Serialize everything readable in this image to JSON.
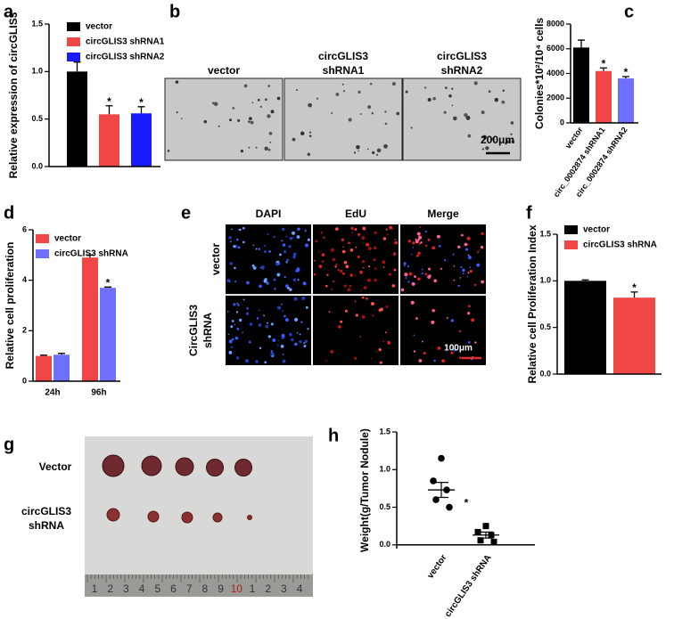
{
  "chart_data": [
    {
      "panel": "a",
      "type": "bar",
      "ylabel": "Relative expression of circGLIS3",
      "series": [
        {
          "name": "vector",
          "color": "#000000",
          "values": [
            1.0
          ],
          "errors": [
            0.1
          ],
          "significance": [
            null
          ]
        },
        {
          "name": "circGLIS3 shRNA1",
          "color": "#f04646",
          "values": [
            0.55
          ],
          "errors": [
            0.09
          ],
          "significance": [
            "*"
          ]
        },
        {
          "name": "circGLIS3 shRNA2",
          "color": "#1a1aff",
          "values": [
            0.56
          ],
          "errors": [
            0.07
          ],
          "significance": [
            "*"
          ]
        }
      ],
      "ylim": [
        0,
        1.5
      ],
      "yticks": [
        {
          "value": 0,
          "label": "0.0"
        },
        {
          "value": 0.5,
          "label": "0.5"
        },
        {
          "value": 1,
          "label": "1.0"
        },
        {
          "value": 1.5,
          "label": "1.5"
        }
      ]
    },
    {
      "panel": "c",
      "type": "bar",
      "ylabel": "Colonies*10²/10⁴ cells",
      "categories": [
        "vector",
        "circ_0002874 shRNA1",
        "circ_0002874 shRNA2"
      ],
      "values": [
        6100,
        4200,
        3600
      ],
      "errors": [
        600,
        250,
        150
      ],
      "significance": [
        null,
        "*",
        "*"
      ],
      "colors": [
        "#000000",
        "#f04646",
        "#6e6eff"
      ],
      "ylim": [
        0,
        8000
      ],
      "yticks": [
        0,
        2000,
        4000,
        6000,
        8000
      ]
    },
    {
      "panel": "d",
      "type": "bar",
      "ylabel": "Relative cell proliferation",
      "categories": [
        "24h",
        "96h"
      ],
      "series": [
        {
          "name": "vector",
          "color": "#f04646",
          "values": [
            1.0,
            4.9
          ],
          "errors": [
            0.03,
            0.1
          ],
          "significance": [
            null,
            null
          ]
        },
        {
          "name": "circGLIS3 shRNA",
          "color": "#7070ff",
          "values": [
            1.05,
            3.7
          ],
          "errors": [
            0.05,
            0.03
          ],
          "significance": [
            null,
            "*"
          ]
        }
      ],
      "ylim": [
        0,
        6
      ],
      "yticks": [
        0,
        2,
        4,
        6
      ]
    },
    {
      "panel": "f",
      "type": "bar",
      "ylabel": "Relative cell Proliferation Index",
      "series": [
        {
          "name": "vector",
          "color": "#000000",
          "values": [
            1.0
          ],
          "errors": [
            0.01
          ],
          "significance": [
            null
          ]
        },
        {
          "name": "circGLIS3 shRNA",
          "color": "#f04646",
          "values": [
            0.82
          ],
          "errors": [
            0.06
          ],
          "significance": [
            "*"
          ]
        }
      ],
      "ylim": [
        0,
        1.5
      ],
      "yticks": [
        {
          "value": 0,
          "label": "0.0"
        },
        {
          "value": 0.5,
          "label": "0.5"
        },
        {
          "value": 1,
          "label": "1.0"
        },
        {
          "value": 1.5,
          "label": "1.5"
        }
      ]
    },
    {
      "panel": "h",
      "type": "dot",
      "ylabel": "Weight(g/Tumor Nodule)",
      "annotation": "*",
      "series": [
        {
          "name": "vector",
          "marker": "circle",
          "values": [
            1.15,
            0.85,
            0.73,
            0.6,
            0.5
          ],
          "mean": 0.73,
          "error": 0.1
        },
        {
          "name": "circGLIS3 shRNA",
          "marker": "square",
          "values": [
            0.25,
            0.17,
            0.13,
            0.06,
            0.04
          ],
          "mean": 0.13,
          "error": 0.04
        }
      ],
      "ylim": [
        -0.05,
        1.5
      ],
      "yticks": [
        {
          "value": 0,
          "label": "0.0"
        },
        {
          "value": 0.5,
          "label": "0.5"
        },
        {
          "value": 1,
          "label": "1.0"
        },
        {
          "value": 1.5,
          "label": "1.5"
        }
      ]
    }
  ],
  "image_panels": {
    "b": {
      "panel": "b",
      "titles": [
        [
          "vector"
        ],
        [
          "circGLIS3",
          "shRNA1"
        ],
        [
          "circGLIS3",
          "shRNA2"
        ]
      ],
      "scale_bar": "200μm"
    },
    "e": {
      "panel": "e",
      "columns": [
        "DAPI",
        "EdU",
        "Merge"
      ],
      "rows": [
        [
          "vector"
        ],
        [
          "CircGLIS3",
          "shRNA"
        ]
      ],
      "scale_bar": "100μm"
    },
    "g": {
      "panel": "g",
      "rows": [
        [
          "Vector"
        ],
        [
          "circGLIS3",
          "shRNA"
        ]
      ],
      "ruler": [
        "1",
        "2",
        "3",
        "4",
        "5",
        "6",
        "7",
        "8",
        "9",
        "10",
        "1",
        "2",
        "3",
        "4"
      ]
    }
  }
}
